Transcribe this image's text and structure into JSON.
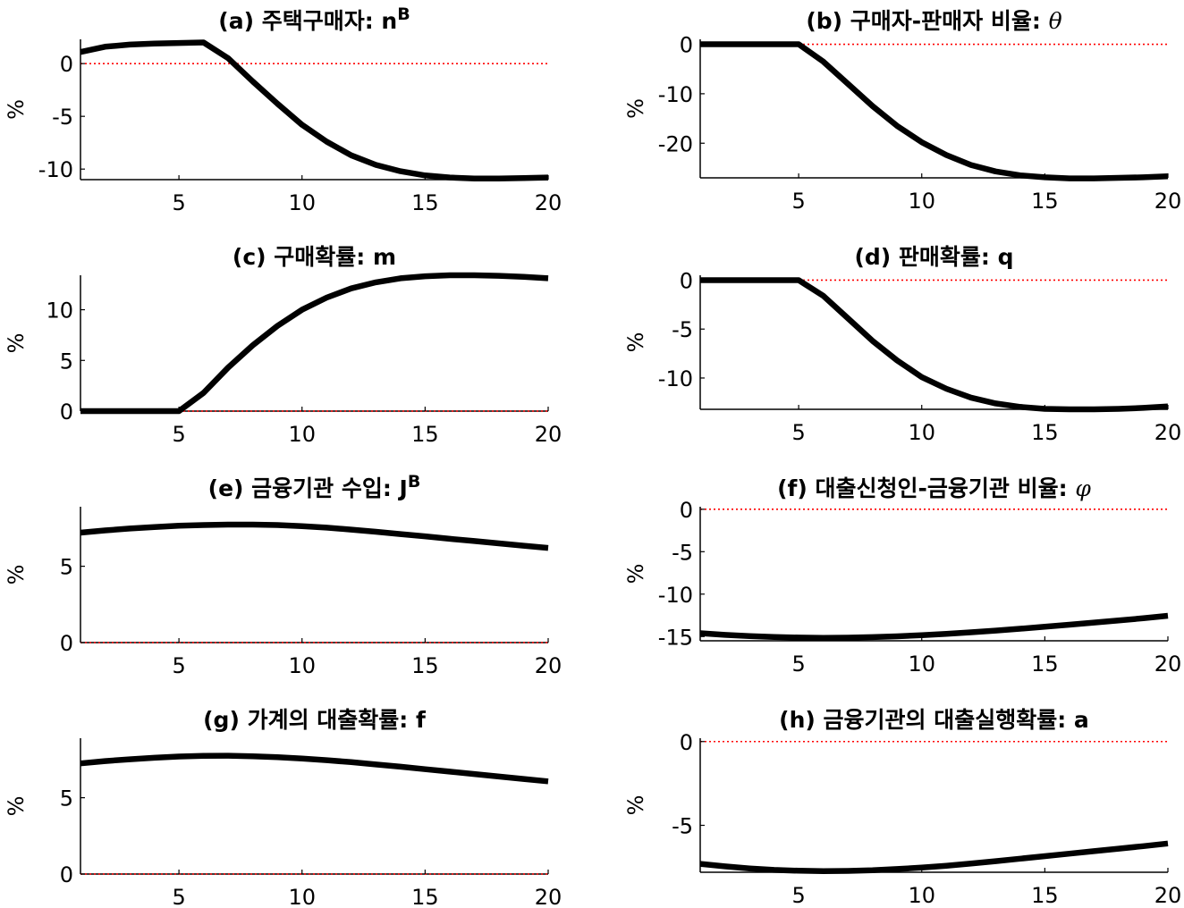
{
  "chart_data": [
    {
      "type": "line",
      "title_main": "(a) 주택구매자: n",
      "title_sup": "B",
      "title_italic": "",
      "ylabel": "%",
      "xlim": [
        1,
        20
      ],
      "ylim": [
        -11,
        2.3
      ],
      "xticks": [
        5,
        10,
        15,
        20
      ],
      "yticks": [
        -10,
        -5,
        0
      ],
      "ytick_labels": [
        "-10",
        "-5",
        "0"
      ],
      "baseline": 0,
      "x": [
        1,
        2,
        3,
        4,
        5,
        6,
        7,
        8,
        9,
        10,
        11,
        12,
        13,
        14,
        15,
        16,
        17,
        18,
        19,
        20
      ],
      "y": [
        1.1,
        1.6,
        1.8,
        1.9,
        1.95,
        2.0,
        0.5,
        -1.7,
        -3.8,
        -5.8,
        -7.4,
        -8.7,
        -9.6,
        -10.2,
        -10.6,
        -10.8,
        -10.9,
        -10.9,
        -10.85,
        -10.8
      ]
    },
    {
      "type": "line",
      "title_main": "(b) 구매자-판매자 비율: ",
      "title_sup": "",
      "title_italic": "θ",
      "ylabel": "%",
      "xlim": [
        1,
        20
      ],
      "ylim": [
        -27,
        1
      ],
      "xticks": [
        5,
        10,
        15,
        20
      ],
      "yticks": [
        -20,
        -10,
        0
      ],
      "ytick_labels": [
        "-20",
        "-10",
        "0"
      ],
      "baseline": 0,
      "x": [
        1,
        2,
        3,
        4,
        5,
        6,
        7,
        8,
        9,
        10,
        11,
        12,
        13,
        14,
        15,
        16,
        17,
        18,
        19,
        20
      ],
      "y": [
        0,
        0,
        0,
        0,
        0,
        -3.5,
        -8,
        -12.5,
        -16.5,
        -19.8,
        -22.4,
        -24.4,
        -25.7,
        -26.5,
        -26.9,
        -27.1,
        -27.1,
        -27.0,
        -26.9,
        -26.7
      ]
    },
    {
      "type": "line",
      "title_main": "(c) 구매확률: m",
      "title_sup": "",
      "title_italic": "",
      "ylabel": "%",
      "xlim": [
        1,
        20
      ],
      "ylim": [
        0,
        13.4
      ],
      "xticks": [
        5,
        10,
        15,
        20
      ],
      "yticks": [
        0,
        5,
        10
      ],
      "ytick_labels": [
        "0",
        "5",
        "10"
      ],
      "baseline": 0,
      "x": [
        1,
        2,
        3,
        4,
        5,
        6,
        7,
        8,
        9,
        10,
        11,
        12,
        13,
        14,
        15,
        16,
        17,
        18,
        19,
        20
      ],
      "y": [
        0,
        0,
        0,
        0,
        0,
        1.8,
        4.3,
        6.5,
        8.4,
        10.0,
        11.2,
        12.1,
        12.7,
        13.1,
        13.3,
        13.4,
        13.4,
        13.35,
        13.25,
        13.1
      ]
    },
    {
      "type": "line",
      "title_main": "(d) 판매확률: q",
      "title_sup": "",
      "title_italic": "",
      "ylabel": "%",
      "xlim": [
        1,
        20
      ],
      "ylim": [
        -13.2,
        0.5
      ],
      "xticks": [
        5,
        10,
        15,
        20
      ],
      "yticks": [
        -10,
        -5,
        0
      ],
      "ytick_labels": [
        "-10",
        "-5",
        "0"
      ],
      "baseline": 0,
      "x": [
        1,
        2,
        3,
        4,
        5,
        6,
        7,
        8,
        9,
        10,
        11,
        12,
        13,
        14,
        15,
        16,
        17,
        18,
        19,
        20
      ],
      "y": [
        0,
        0,
        0,
        0,
        0,
        -1.6,
        -3.9,
        -6.2,
        -8.2,
        -9.9,
        -11.1,
        -12.0,
        -12.6,
        -12.95,
        -13.15,
        -13.2,
        -13.2,
        -13.15,
        -13.05,
        -12.9
      ]
    },
    {
      "type": "line",
      "title_main": "(e) 금융기관 수입: J",
      "title_sup": "B",
      "title_italic": "",
      "ylabel": "%",
      "xlim": [
        1,
        20
      ],
      "ylim": [
        0,
        8.9
      ],
      "xticks": [
        5,
        10,
        15,
        20
      ],
      "yticks": [
        0,
        5
      ],
      "ytick_labels": [
        "0",
        "5"
      ],
      "baseline": 0,
      "x": [
        1,
        2,
        3,
        4,
        5,
        6,
        7,
        8,
        9,
        10,
        11,
        12,
        13,
        14,
        15,
        16,
        17,
        18,
        19,
        20
      ],
      "y": [
        7.2,
        7.35,
        7.47,
        7.57,
        7.65,
        7.7,
        7.73,
        7.73,
        7.7,
        7.63,
        7.53,
        7.4,
        7.26,
        7.11,
        6.96,
        6.8,
        6.65,
        6.5,
        6.35,
        6.2
      ]
    },
    {
      "type": "line",
      "title_main": "(f) 대출신청인-금융기관 비율: ",
      "title_sup": "",
      "title_italic": "φ",
      "ylabel": "%",
      "xlim": [
        1,
        20
      ],
      "ylim": [
        -15.5,
        0.3
      ],
      "xticks": [
        5,
        10,
        15,
        20
      ],
      "yticks": [
        -15,
        -10,
        -5,
        0
      ],
      "ytick_labels": [
        "-15",
        "-10",
        "-5",
        "0"
      ],
      "baseline": 0,
      "x": [
        1,
        2,
        3,
        4,
        5,
        6,
        7,
        8,
        9,
        10,
        11,
        12,
        13,
        14,
        15,
        16,
        17,
        18,
        19,
        20
      ],
      "y": [
        -14.6,
        -14.8,
        -14.95,
        -15.05,
        -15.12,
        -15.15,
        -15.13,
        -15.07,
        -14.97,
        -14.84,
        -14.68,
        -14.5,
        -14.3,
        -14.08,
        -13.85,
        -13.6,
        -13.35,
        -13.1,
        -12.85,
        -12.55
      ]
    },
    {
      "type": "line",
      "title_main": "(g) 가계의 대출확률: f",
      "title_sup": "",
      "title_italic": "",
      "ylabel": "%",
      "xlim": [
        1,
        20
      ],
      "ylim": [
        0,
        8.9
      ],
      "xticks": [
        5,
        10,
        15,
        20
      ],
      "yticks": [
        0,
        5
      ],
      "ytick_labels": [
        "0",
        "5"
      ],
      "baseline": 0,
      "x": [
        1,
        2,
        3,
        4,
        5,
        6,
        7,
        8,
        9,
        10,
        11,
        12,
        13,
        14,
        15,
        16,
        17,
        18,
        19,
        20
      ],
      "y": [
        7.25,
        7.4,
        7.52,
        7.62,
        7.7,
        7.74,
        7.75,
        7.72,
        7.66,
        7.57,
        7.46,
        7.33,
        7.18,
        7.03,
        6.87,
        6.71,
        6.55,
        6.39,
        6.23,
        6.07
      ]
    },
    {
      "type": "line",
      "title_main": "(h) 금융기관의 대출실행확률: a",
      "title_sup": "",
      "title_italic": "",
      "ylabel": "%",
      "xlim": [
        1,
        20
      ],
      "ylim": [
        -7.8,
        0.2
      ],
      "xticks": [
        5,
        10,
        15,
        20
      ],
      "yticks": [
        -5,
        0
      ],
      "ytick_labels": [
        "-5",
        "0"
      ],
      "baseline": 0,
      "x": [
        1,
        2,
        3,
        4,
        5,
        6,
        7,
        8,
        9,
        10,
        11,
        12,
        13,
        14,
        15,
        16,
        17,
        18,
        19,
        20
      ],
      "y": [
        -7.3,
        -7.45,
        -7.57,
        -7.66,
        -7.71,
        -7.73,
        -7.72,
        -7.68,
        -7.61,
        -7.52,
        -7.41,
        -7.28,
        -7.14,
        -6.99,
        -6.84,
        -6.69,
        -6.54,
        -6.39,
        -6.24,
        -6.08
      ]
    }
  ],
  "colors": {
    "series_line": "#000000",
    "baseline": "#ff0000",
    "axes": "#000000",
    "background": "#ffffff"
  }
}
